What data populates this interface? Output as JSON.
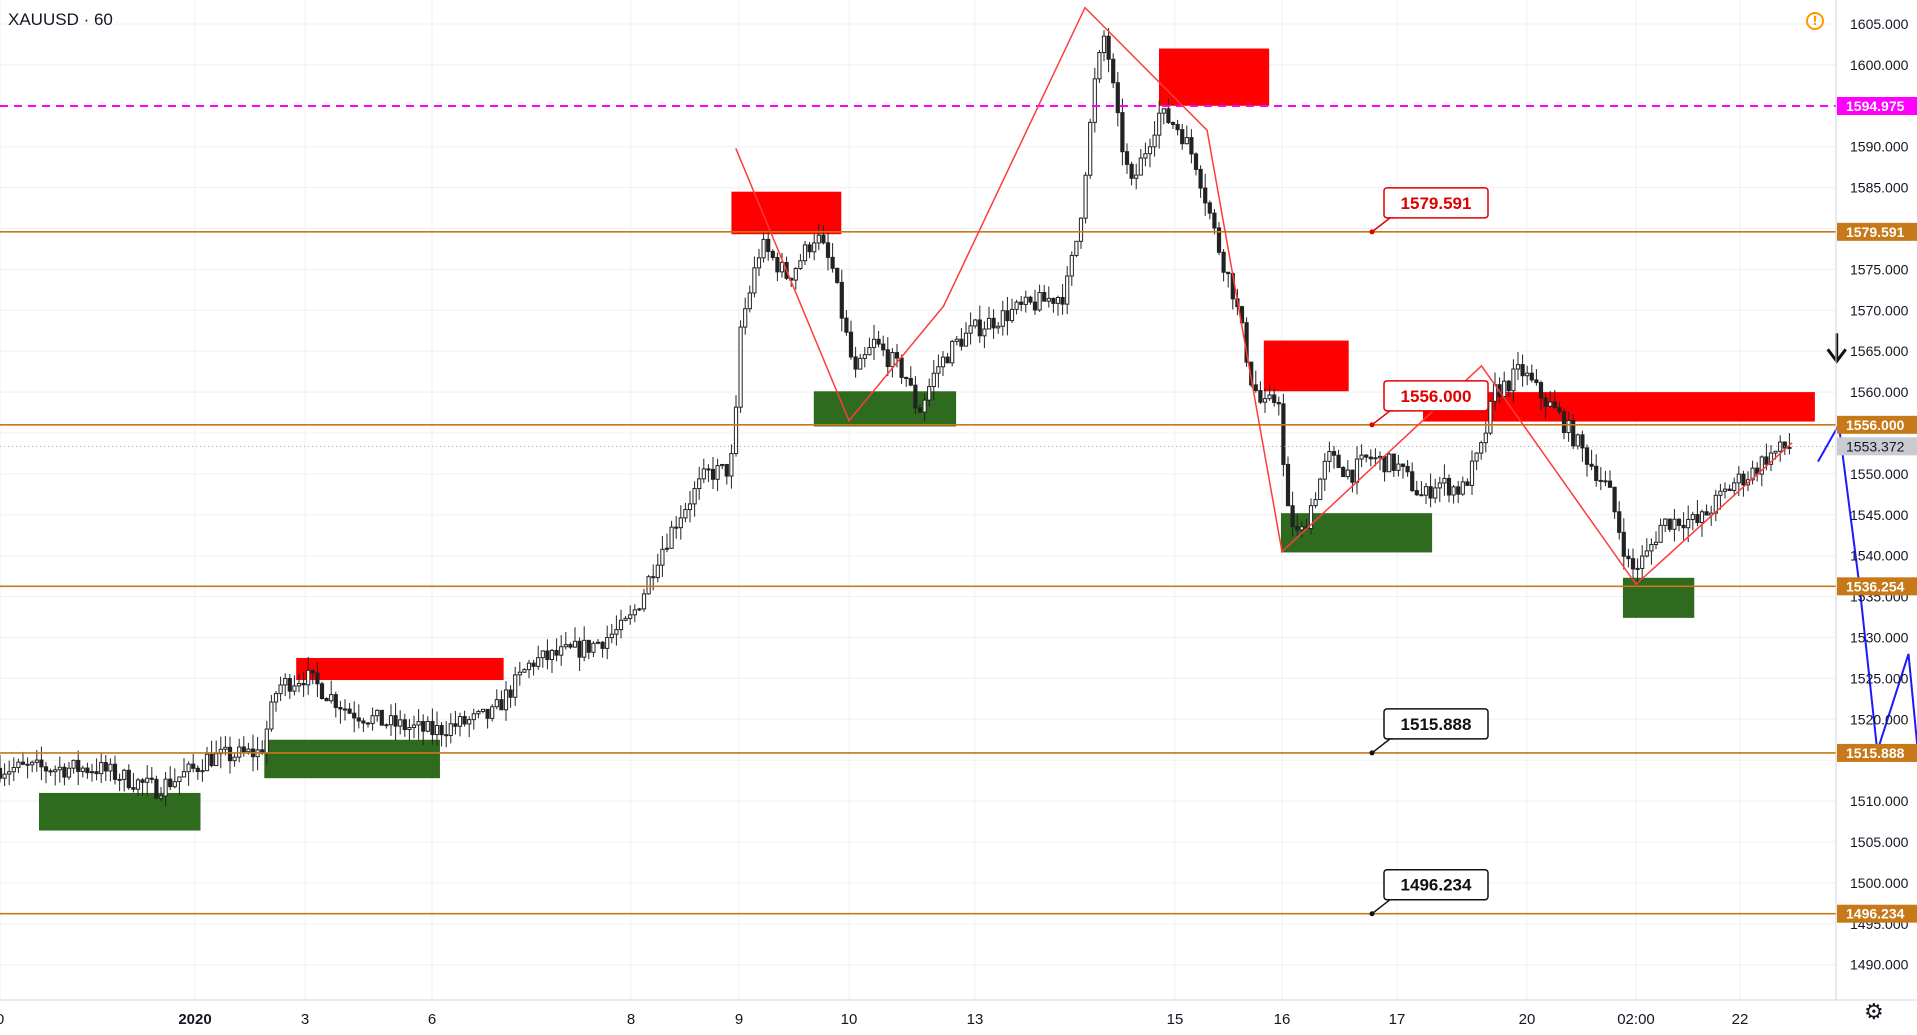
{
  "header": {
    "symbol": "XAUUSD · 60",
    "alert_icon": "exclamation-circle-icon",
    "settings_icon": "gear-icon"
  },
  "colors": {
    "background": "#ffffff",
    "grid": "#eef0f3",
    "candle": "#222222",
    "level_line": "#c77818",
    "magenta_line": "#ff00ff",
    "supply_zone": "#ff0000",
    "demand_zone": "#2f6b1e",
    "pattern_line": "#ff3b3b",
    "projection_line": "#1a1aff",
    "last_price_badge": "#c9cbd1"
  },
  "chart_data": {
    "type": "candlestick",
    "symbol": "XAUUSD",
    "timeframe": "60",
    "ylim": [
      1485,
      1607
    ],
    "y_ticks": [
      "1605.000",
      "1600.000",
      "1590.000",
      "1585.000",
      "1575.000",
      "1570.000",
      "1565.000",
      "1560.000",
      "1550.000",
      "1545.000",
      "1540.000",
      "1535.000",
      "1530.000",
      "1525.000",
      "1520.000",
      "1510.000",
      "1505.000",
      "1500.000",
      "1495.000",
      "1490.000"
    ],
    "x_ticks": [
      "0",
      "2020",
      "3",
      "6",
      "8",
      "9",
      "10",
      "13",
      "15",
      "16",
      "17",
      "20",
      "02:00",
      "22"
    ],
    "last_price": "1553.372",
    "levels": [
      {
        "price": 1594.975,
        "label": "1594.975",
        "style": "dashed",
        "color": "#ff00ff",
        "callout": ""
      },
      {
        "price": 1579.591,
        "label": "1579.591",
        "style": "solid",
        "color": "#c77818",
        "callout": "1579.591"
      },
      {
        "price": 1556.0,
        "label": "1556.000",
        "style": "solid",
        "color": "#c77818",
        "callout": "1556.000"
      },
      {
        "price": 1536.254,
        "label": "1536.254",
        "style": "solid",
        "color": "#c77818",
        "callout": ""
      },
      {
        "price": 1515.888,
        "label": "1515.888",
        "style": "solid",
        "color": "#c77818",
        "callout": "1515.888"
      },
      {
        "price": 1496.234,
        "label": "1496.234",
        "style": "solid",
        "color": "#c77818",
        "callout": "1496.234"
      }
    ],
    "supply_zones": [
      {
        "t0": 0.92,
        "t1": 2.36,
        "p_top": 1527.5,
        "p_bot": 1524.8
      },
      {
        "t0": 3.93,
        "t1": 4.93,
        "p_top": 1584.5,
        "p_bot": 1579.3
      },
      {
        "t0": 6.92,
        "t1": 7.88,
        "p_top": 1602.0,
        "p_bot": 1595.0
      },
      {
        "t0": 7.83,
        "t1": 8.58,
        "p_top": 1566.3,
        "p_bot": 1560.1
      },
      {
        "t0": 9.2,
        "t1": 12.72,
        "p_top": 1560.0,
        "p_bot": 1556.4
      }
    ],
    "demand_zones": [
      {
        "t0": -0.8,
        "t1": 0.05,
        "p_top": 1511.0,
        "p_bot": 1506.4
      },
      {
        "t0": 0.63,
        "t1": 2.04,
        "p_top": 1517.5,
        "p_bot": 1512.8
      },
      {
        "t0": 4.68,
        "t1": 5.85,
        "p_top": 1560.1,
        "p_bot": 1555.8
      },
      {
        "t0": 7.99,
        "t1": 9.27,
        "p_top": 1545.2,
        "p_bot": 1540.4
      },
      {
        "t0": 10.88,
        "t1": 11.56,
        "p_top": 1537.3,
        "p_bot": 1532.4
      }
    ],
    "pattern_path": [
      [
        3.97,
        1589.8
      ],
      [
        5.0,
        1556.5
      ],
      [
        5.75,
        1570.5
      ],
      [
        6.55,
        1607
      ],
      [
        7.3,
        1592
      ],
      [
        8.0,
        1540.5
      ],
      [
        9.65,
        1563.2
      ],
      [
        11.0,
        1536.5
      ],
      [
        12.5,
        1553.8
      ]
    ],
    "projection_path": [
      [
        12.75,
        1551.5
      ],
      [
        12.95,
        1556
      ],
      [
        13.15,
        1536.2
      ],
      [
        13.32,
        1516.1
      ],
      [
        13.62,
        1528
      ],
      [
        13.86,
        1496.3
      ]
    ],
    "down_arrow": {
      "t": 12.93,
      "p": 1564.5
    },
    "price_path": [
      [
        -1.0,
        1514
      ],
      [
        -0.5,
        1514
      ],
      [
        -0.2,
        1511.5
      ],
      [
        0.1,
        1515.2
      ],
      [
        0.6,
        1516
      ],
      [
        0.75,
        1524
      ],
      [
        1.0,
        1525.3
      ],
      [
        1.35,
        1521
      ],
      [
        1.65,
        1519.5
      ],
      [
        2.0,
        1518.5
      ],
      [
        2.3,
        1520.5
      ],
      [
        2.5,
        1527
      ],
      [
        2.8,
        1529
      ],
      [
        2.95,
        1531
      ],
      [
        3.1,
        1535
      ],
      [
        3.25,
        1540
      ],
      [
        3.45,
        1545
      ],
      [
        3.7,
        1550
      ],
      [
        3.9,
        1550.5
      ],
      [
        3.96,
        1553
      ],
      [
        4.0,
        1567
      ],
      [
        4.2,
        1578
      ],
      [
        4.45,
        1574
      ],
      [
        4.7,
        1579.3
      ],
      [
        4.85,
        1575
      ],
      [
        5.05,
        1562
      ],
      [
        5.2,
        1566
      ],
      [
        5.45,
        1562
      ],
      [
        5.55,
        1557.5
      ],
      [
        5.7,
        1563
      ],
      [
        5.85,
        1566
      ],
      [
        6.2,
        1570
      ],
      [
        6.45,
        1572
      ],
      [
        6.52,
        1580
      ],
      [
        6.6,
        1598
      ],
      [
        6.65,
        1604
      ],
      [
        6.72,
        1592
      ],
      [
        6.78,
        1585
      ],
      [
        6.92,
        1594
      ],
      [
        7.05,
        1592
      ],
      [
        7.2,
        1588
      ],
      [
        7.4,
        1578
      ],
      [
        7.55,
        1572
      ],
      [
        7.65,
        1566
      ],
      [
        7.7,
        1562
      ],
      [
        7.82,
        1558
      ],
      [
        7.98,
        1559.5
      ],
      [
        8.03,
        1546
      ],
      [
        8.15,
        1542
      ],
      [
        8.4,
        1552
      ],
      [
        8.6,
        1550
      ],
      [
        8.75,
        1552
      ],
      [
        9.0,
        1551
      ],
      [
        9.2,
        1547
      ],
      [
        9.3,
        1549
      ],
      [
        9.5,
        1548
      ],
      [
        9.65,
        1553
      ],
      [
        9.75,
        1560
      ],
      [
        9.85,
        1561
      ],
      [
        9.95,
        1562.7
      ],
      [
        10.1,
        1560
      ],
      [
        10.3,
        1557
      ],
      [
        10.45,
        1554
      ],
      [
        10.6,
        1551
      ],
      [
        10.75,
        1548
      ],
      [
        10.87,
        1542
      ],
      [
        10.95,
        1538
      ],
      [
        11.1,
        1540
      ],
      [
        11.25,
        1544
      ],
      [
        11.45,
        1544.5
      ],
      [
        11.6,
        1544
      ],
      [
        11.8,
        1547
      ],
      [
        11.95,
        1549
      ],
      [
        12.1,
        1550
      ],
      [
        12.25,
        1552
      ],
      [
        12.4,
        1553
      ],
      [
        12.48,
        1553.4
      ]
    ]
  }
}
